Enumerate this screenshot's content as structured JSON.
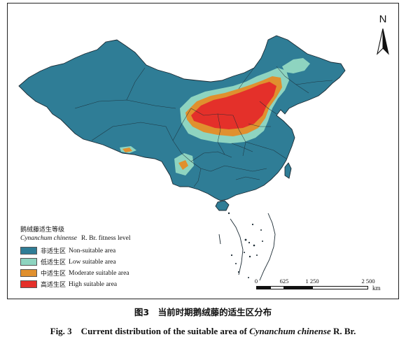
{
  "map": {
    "north_label": "N",
    "colors": {
      "non_suitable": "#2f7d96",
      "low_suitable": "#8ed4c0",
      "moderate_suitable": "#e0902e",
      "high_suitable": "#e4302a",
      "boundary": "#1b2a33"
    }
  },
  "legend": {
    "title_cn": "鹅绒藤适生等级",
    "title_en_species": "Cynanchum chinense",
    "title_en_rest": "R. Br. fitness level",
    "items": [
      {
        "cn": "非适生区",
        "en": "Non-suitable area",
        "color": "#2f7d96"
      },
      {
        "cn": "低适生区",
        "en": "Low suitable area",
        "color": "#8ed4c0"
      },
      {
        "cn": "中适生区",
        "en": "Moderate suitable area",
        "color": "#e0902e"
      },
      {
        "cn": "高适生区",
        "en": "High suitable area",
        "color": "#e4302a"
      }
    ]
  },
  "scale_bar": {
    "ticks": [
      "0",
      "625",
      "1 250",
      "2 500"
    ],
    "unit": "km"
  },
  "caption": {
    "cn": "图3　当前时期鹅绒藤的适生区分布",
    "en_prefix": "Fig. 3　Current distribution of the suitable area of ",
    "en_species": "Cynanchum chinense",
    "en_suffix": " R. Br."
  }
}
